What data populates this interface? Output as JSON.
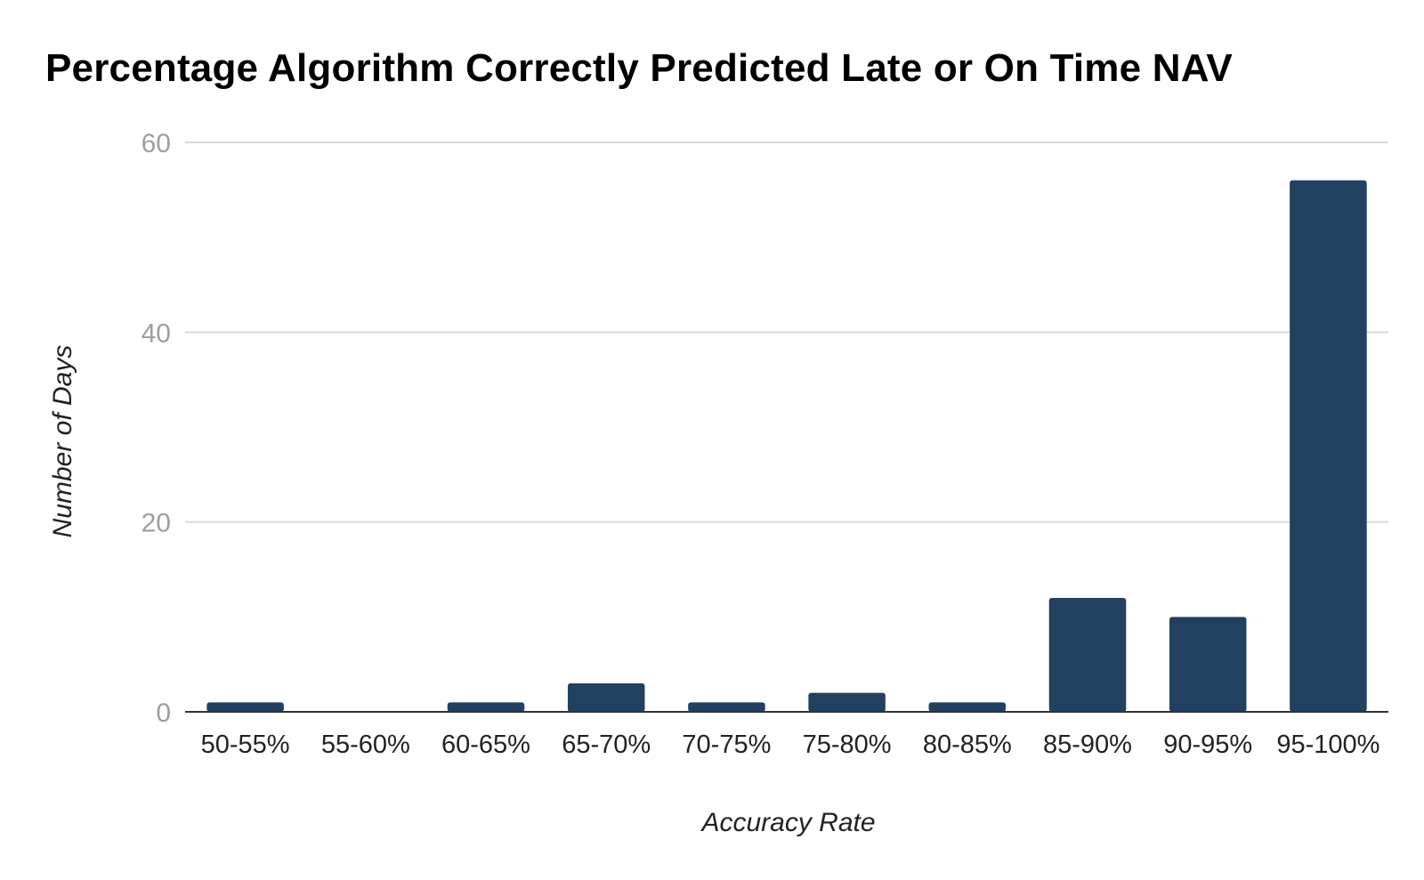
{
  "chart_data": {
    "type": "bar",
    "title": "Percentage Algorithm Correctly Predicted Late or On Time NAV",
    "xlabel": "Accuracy Rate",
    "ylabel": "Number of Days",
    "categories": [
      "50-55%",
      "55-60%",
      "60-65%",
      "65-70%",
      "70-75%",
      "75-80%",
      "80-85%",
      "85-90%",
      "90-95%",
      "95-100%"
    ],
    "values": [
      1,
      0,
      1,
      3,
      1,
      2,
      1,
      12,
      10,
      56
    ],
    "ylim": [
      0,
      60
    ],
    "yticks": [
      0,
      20,
      40,
      60
    ],
    "grid": true,
    "legend": "none",
    "colors": {
      "bar": "#22405f",
      "grid": "#d9d9d9",
      "baseline": "#333333"
    }
  }
}
